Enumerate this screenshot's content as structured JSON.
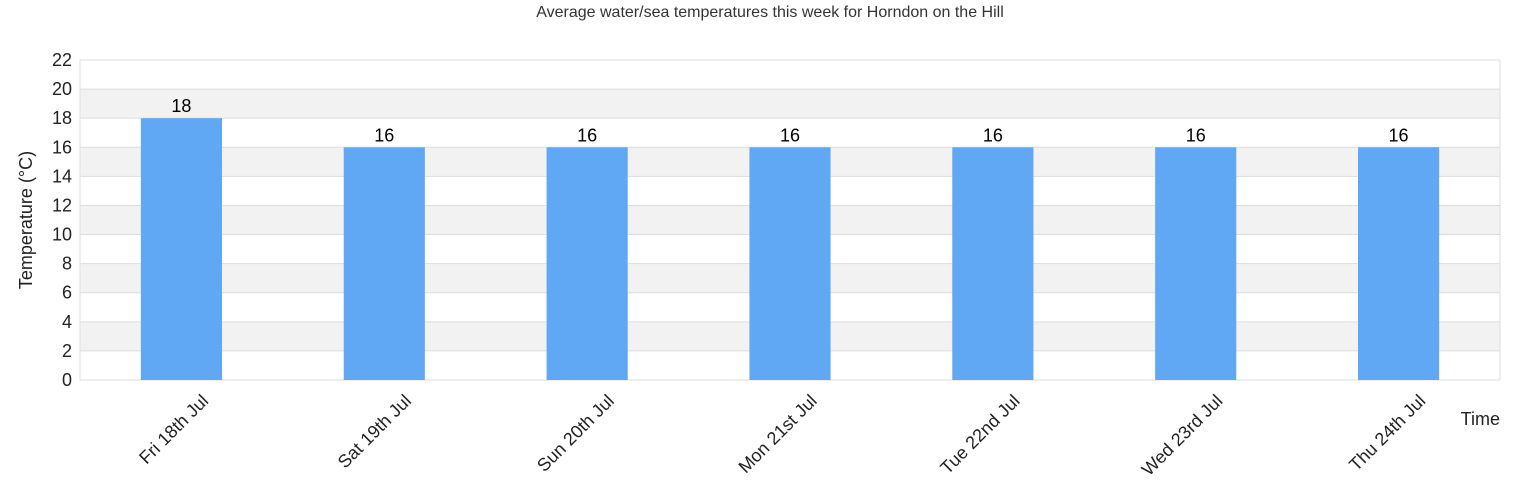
{
  "chart_data": {
    "type": "bar",
    "title": "Average water/sea temperatures this week for Horndon on the Hill",
    "xlabel": "Time",
    "ylabel": "Temperature (°C)",
    "categories": [
      "Fri 18th Jul",
      "Sat 19th Jul",
      "Sun 20th Jul",
      "Mon 21st Jul",
      "Tue 22nd Jul",
      "Wed 23rd Jul",
      "Thu 24th Jul"
    ],
    "values": [
      18,
      16,
      16,
      16,
      16,
      16,
      16
    ],
    "ylim": [
      0,
      22
    ],
    "yticks": [
      0,
      2,
      4,
      6,
      8,
      10,
      12,
      14,
      16,
      18,
      20,
      22
    ],
    "grid": true,
    "bar_color": "#60a8f4",
    "band_color": "#f2f2f2",
    "grid_color": "#dddddd"
  }
}
